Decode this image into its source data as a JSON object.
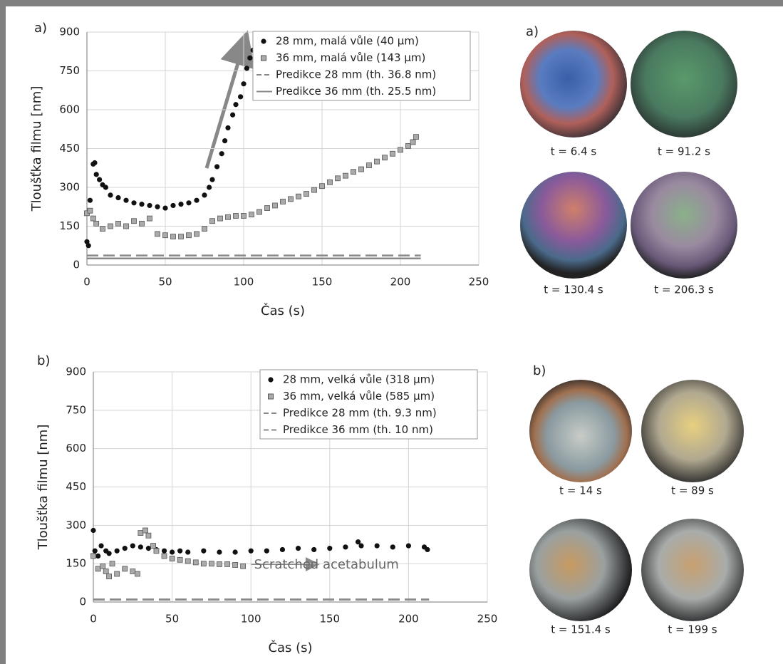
{
  "chart_data": [
    {
      "type": "scatter",
      "label": "a)",
      "ylabel": "Tloušťka filmu [nm]",
      "xlabel": "Čas (s)",
      "xlim": [
        0,
        250
      ],
      "ylim": [
        0,
        900
      ],
      "xticks": [
        0,
        50,
        100,
        150,
        200,
        250
      ],
      "yticks": [
        0,
        150,
        300,
        450,
        600,
        750,
        900
      ],
      "grid": true,
      "legend": "top-right",
      "series": [
        {
          "name": "28 mm, malá vůle (40 µm)",
          "marker": "circle",
          "color": "#111111",
          "x": [
            0,
            1,
            2,
            4,
            5,
            6,
            8,
            10,
            12,
            15,
            20,
            25,
            30,
            35,
            40,
            45,
            50,
            55,
            60,
            65,
            70,
            75,
            78,
            80,
            83,
            86,
            88,
            90,
            93,
            95,
            98,
            100,
            102,
            104,
            106,
            108
          ],
          "values": [
            90,
            75,
            250,
            390,
            395,
            350,
            330,
            310,
            300,
            270,
            260,
            250,
            240,
            235,
            230,
            225,
            220,
            230,
            235,
            240,
            250,
            270,
            300,
            330,
            380,
            430,
            480,
            530,
            580,
            620,
            650,
            700,
            760,
            800,
            830,
            840
          ]
        },
        {
          "name": "36 mm, malá vůle (143 µm)",
          "marker": "square",
          "color": "#aaaaaa",
          "x": [
            0,
            2,
            4,
            6,
            10,
            15,
            20,
            25,
            30,
            35,
            40,
            45,
            50,
            55,
            60,
            65,
            70,
            75,
            80,
            85,
            90,
            95,
            100,
            105,
            110,
            115,
            120,
            125,
            130,
            135,
            140,
            145,
            150,
            155,
            160,
            165,
            170,
            175,
            180,
            185,
            190,
            195,
            200,
            205,
            208,
            210
          ],
          "values": [
            200,
            210,
            180,
            160,
            140,
            150,
            160,
            150,
            170,
            160,
            180,
            120,
            115,
            110,
            110,
            115,
            120,
            140,
            170,
            180,
            185,
            190,
            190,
            195,
            205,
            220,
            230,
            245,
            255,
            265,
            275,
            290,
            305,
            320,
            335,
            345,
            360,
            370,
            385,
            400,
            415,
            430,
            445,
            460,
            475,
            495
          ]
        },
        {
          "name": "Predikce 28 mm (th. 36.8 nm)",
          "marker": "dash",
          "color": "#888888",
          "x": [
            0,
            213
          ],
          "values": [
            36.8,
            36.8
          ]
        },
        {
          "name": "Predikce 36 mm (th. 25.5 nm)",
          "marker": "line",
          "color": "#888888",
          "x": [
            0,
            213
          ],
          "values": [
            25.5,
            25.5
          ]
        }
      ]
    },
    {
      "type": "scatter",
      "label": "b)",
      "ylabel": "Tloušťka filmu [nm]",
      "xlabel": "Čas (s)",
      "xlim": [
        0,
        250
      ],
      "ylim": [
        0,
        900
      ],
      "xticks": [
        0,
        50,
        100,
        150,
        200,
        250
      ],
      "yticks": [
        0,
        150,
        300,
        450,
        600,
        750,
        900
      ],
      "grid": true,
      "legend": "top-right",
      "annotation": "Scratched acetabulum",
      "series": [
        {
          "name": "28 mm, velká vůle (318 µm)",
          "marker": "circle",
          "color": "#111111",
          "x": [
            0,
            1,
            3,
            5,
            8,
            10,
            15,
            20,
            25,
            30,
            35,
            40,
            45,
            50,
            55,
            60,
            70,
            80,
            90,
            100,
            110,
            120,
            130,
            140,
            150,
            160,
            168,
            170,
            180,
            190,
            200,
            210,
            212
          ],
          "values": [
            280,
            200,
            180,
            220,
            200,
            190,
            200,
            210,
            220,
            215,
            210,
            205,
            200,
            195,
            200,
            195,
            200,
            195,
            195,
            200,
            200,
            205,
            210,
            205,
            210,
            215,
            235,
            220,
            220,
            215,
            220,
            215,
            205
          ]
        },
        {
          "name": "36 mm, velká vůle (585 µm)",
          "marker": "square",
          "color": "#aaaaaa",
          "x": [
            0,
            3,
            6,
            8,
            10,
            12,
            15,
            20,
            25,
            28,
            30,
            33,
            35,
            38,
            40,
            45,
            50,
            55,
            60,
            65,
            70,
            75,
            80,
            85,
            90,
            95
          ],
          "values": [
            180,
            130,
            140,
            120,
            100,
            150,
            110,
            130,
            120,
            110,
            270,
            280,
            260,
            220,
            200,
            180,
            170,
            165,
            160,
            155,
            150,
            150,
            148,
            148,
            145,
            140
          ]
        },
        {
          "name": "Predikce 28 mm (th. 9.3 nm)",
          "marker": "dash",
          "color": "#888888",
          "x": [
            0,
            213
          ],
          "values": [
            9.3,
            9.3
          ]
        },
        {
          "name": "Predikce 36 mm (th. 10 nm)",
          "marker": "dash",
          "color": "#888888",
          "x": [
            0,
            213
          ],
          "values": [
            10,
            10
          ]
        }
      ]
    }
  ],
  "photos": [
    {
      "label": "a)",
      "captions": [
        "t = 6.4 s",
        "t = 91.2 s",
        "t = 130.4 s",
        "t = 206.3 s"
      ]
    },
    {
      "label": "b)",
      "captions": [
        "t = 14 s",
        "t = 89 s",
        "t = 151.4 s",
        "t = 199 s"
      ]
    }
  ]
}
